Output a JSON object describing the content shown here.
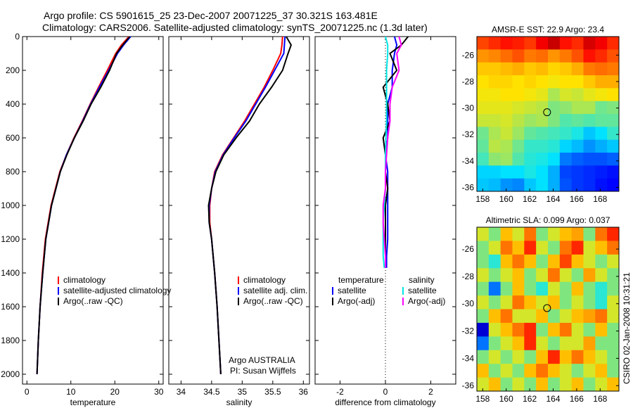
{
  "title": {
    "line1": "Argo profile: CS 5901615_25 23-Dec-2007 20071225_37 30.321S 163.481E",
    "line2": "Climatology: CARS2006. Satellite-adjusted climatology: synTS_20071225.nc (1.3d later)"
  },
  "side_label": "CSIRO 02-Jan-2008 10:31:21",
  "colors": {
    "climatology": "#ff0000",
    "satellite": "#0000ff",
    "argo": "#000000",
    "sal_satellite": "#00e5e5",
    "sal_argo": "#ff00ff"
  },
  "chart_data": [
    {
      "type": "line",
      "xlabel": "temperature",
      "ylabel": "",
      "xlim": [
        -1,
        31
      ],
      "ylim": [
        2000,
        0
      ],
      "xticks": [
        "0",
        "10",
        "20",
        "30"
      ],
      "yticks": [
        "0",
        "200",
        "400",
        "600",
        "800",
        "1000",
        "1200",
        "1400",
        "1600",
        "1800",
        "2000"
      ],
      "depth": [
        0,
        50,
        100,
        200,
        300,
        400,
        500,
        600,
        700,
        800,
        1000,
        1200,
        1400,
        1600,
        1800,
        2000
      ],
      "series": [
        {
          "name": "climatology",
          "values": [
            23.2,
            21.5,
            20.2,
            18.3,
            16.3,
            14.4,
            12.6,
            10.7,
            9.0,
            7.5,
            5.5,
            4.2,
            3.5,
            3.0,
            2.6,
            2.3
          ]
        },
        {
          "name": "satellite-adjusted climatology",
          "values": [
            23.6,
            22.0,
            20.6,
            18.6,
            16.5,
            14.5,
            12.7,
            10.8,
            9.0,
            7.6,
            5.6,
            4.3,
            3.6,
            3.0,
            2.6,
            2.3
          ]
        },
        {
          "name": "Argo(..raw -QC)",
          "values": [
            23.4,
            21.8,
            20.4,
            18.8,
            16.8,
            14.6,
            12.8,
            10.8,
            9.1,
            7.6,
            5.6,
            4.3,
            3.6,
            3.0,
            2.6,
            2.3
          ]
        }
      ],
      "legend": [
        "climatology",
        "satellite-adjusted climatology",
        "Argo(..raw -QC)"
      ]
    },
    {
      "type": "line",
      "xlabel": "salinity",
      "xlim": [
        33.8,
        36.1
      ],
      "ylim": [
        2000,
        0
      ],
      "xticks": [
        "34",
        "34.5",
        "35",
        "35.5",
        "36"
      ],
      "depth": [
        0,
        50,
        100,
        200,
        300,
        400,
        500,
        600,
        700,
        800,
        900,
        1000,
        1100,
        1200,
        1400,
        1600,
        1800,
        2000
      ],
      "series": [
        {
          "name": "climatology",
          "values": [
            35.66,
            35.65,
            35.63,
            35.5,
            35.36,
            35.2,
            35.04,
            34.86,
            34.68,
            34.55,
            34.5,
            34.47,
            34.47,
            34.5,
            34.55,
            34.59,
            34.62,
            34.65
          ]
        },
        {
          "name": "satellite adj. clim.",
          "values": [
            35.7,
            35.69,
            35.68,
            35.53,
            35.38,
            35.22,
            35.06,
            34.87,
            34.69,
            34.56,
            34.5,
            34.46,
            34.46,
            34.5,
            34.55,
            34.59,
            34.62,
            34.65
          ]
        },
        {
          "name": "Argo(..raw -QC)",
          "values": [
            35.72,
            35.8,
            35.75,
            35.66,
            35.48,
            35.28,
            35.12,
            34.9,
            34.7,
            34.57,
            34.5,
            34.45,
            34.46,
            34.5,
            34.55,
            34.59,
            34.62,
            34.65
          ]
        }
      ],
      "legend": [
        "climatology",
        "satellite adj. clim.",
        "Argo(..raw -QC)"
      ],
      "annotation": [
        "Argo AUSTRALIA",
        "PI: Susan Wijffels"
      ]
    },
    {
      "type": "line",
      "xlabel": "difference from climatology",
      "xlim": [
        -3.1,
        3.1
      ],
      "ylim": [
        2000,
        0
      ],
      "xticks": [
        "-2",
        "0",
        "2"
      ],
      "depth": [
        0,
        50,
        100,
        200,
        300,
        400,
        500,
        600,
        700,
        800,
        900,
        1000,
        1100,
        1200,
        1300,
        1370
      ],
      "series": [
        {
          "name": "temperature satellite",
          "values": [
            0.4,
            0.5,
            0.4,
            0.3,
            0.3,
            0.1,
            0.1,
            0.1,
            0.0,
            0.1,
            0.1,
            0.1,
            0.1,
            0.1,
            0.05,
            0.05
          ]
        },
        {
          "name": "temperature Argo(-adj)",
          "values": [
            1.0,
            0.7,
            0.2,
            0.5,
            -0.1,
            0.1,
            0.2,
            -0.1,
            0.0,
            0.0,
            0.1,
            0.0,
            0.0,
            0.0,
            0.0,
            0.0
          ]
        },
        {
          "name": "salinity satellite",
          "values": [
            0.0,
            0.1,
            0.1,
            0.05,
            0.05,
            0.05,
            0.05,
            0.02,
            0.0,
            0.0,
            0.0,
            -0.05,
            -0.1,
            -0.1,
            -0.1,
            -0.05
          ]
        },
        {
          "name": "salinity Argo(-adj)",
          "values": [
            0.6,
            0.7,
            0.5,
            0.6,
            0.3,
            0.2,
            0.2,
            0.1,
            0.05,
            0.0,
            0.0,
            -0.1,
            -0.1,
            -0.05,
            0.0,
            0.0
          ]
        }
      ],
      "legend": {
        "temperature": "temperature",
        "salinity": "salinity",
        "items": [
          "satellite",
          "Argo(-adj)",
          "satellite",
          "Argo(-adj)"
        ]
      }
    },
    {
      "type": "heatmap",
      "title": "AMSR-E SST: 22.9 Argo: 23.4",
      "xticks": [
        "158",
        "160",
        "162",
        "164",
        "166",
        "168"
      ],
      "yticks": [
        "-26",
        "-28",
        "-30",
        "-32",
        "-34",
        "-36"
      ],
      "clim": [
        19,
        26
      ],
      "profile_lon": 163.48,
      "profile_lat": -30.32,
      "grid": [
        [
          24.6,
          24.8,
          25.0,
          24.9,
          24.7,
          25.2,
          25.5,
          25.0,
          24.8,
          25.4,
          25.2,
          24.8
        ],
        [
          24.0,
          24.1,
          24.3,
          24.5,
          24.2,
          24.3,
          24.0,
          24.2,
          24.5,
          25.0,
          24.8,
          24.5
        ],
        [
          23.6,
          23.6,
          23.7,
          23.8,
          23.6,
          23.7,
          23.5,
          23.6,
          23.8,
          24.2,
          24.3,
          24.2
        ],
        [
          23.4,
          23.5,
          23.5,
          23.4,
          23.5,
          23.4,
          23.3,
          23.4,
          23.4,
          23.6,
          23.8,
          23.8
        ],
        [
          23.3,
          23.3,
          23.4,
          23.4,
          23.3,
          23.2,
          22.8,
          23.1,
          23.0,
          23.2,
          23.3,
          23.4
        ],
        [
          23.2,
          23.2,
          23.2,
          23.1,
          23.0,
          22.9,
          22.5,
          22.6,
          22.8,
          22.8,
          22.4,
          22.5
        ],
        [
          23.0,
          23.0,
          23.1,
          22.9,
          22.7,
          22.8,
          22.5,
          22.2,
          22.3,
          22.2,
          22.3,
          22.3
        ],
        [
          22.4,
          22.8,
          23.0,
          22.7,
          22.3,
          22.2,
          22.1,
          22.0,
          21.8,
          21.4,
          21.6,
          22.0
        ],
        [
          22.3,
          22.9,
          22.8,
          22.4,
          22.0,
          22.0,
          21.9,
          21.5,
          21.3,
          21.0,
          21.2,
          21.4
        ],
        [
          22.1,
          22.6,
          22.7,
          22.2,
          21.9,
          21.8,
          21.6,
          20.8,
          20.6,
          20.5,
          20.5,
          20.6
        ],
        [
          21.5,
          21.5,
          21.6,
          21.6,
          21.8,
          21.6,
          21.2,
          20.4,
          20.3,
          20.2,
          20.1,
          20.0
        ],
        [
          21.4,
          21.3,
          21.0,
          20.9,
          21.4,
          21.6,
          21.2,
          20.5,
          20.3,
          20.2,
          20.0,
          19.9
        ]
      ]
    },
    {
      "type": "heatmap",
      "title": "Altimetric SLA: 0.099 Argo: 0.037",
      "xticks": [
        "158",
        "160",
        "162",
        "164",
        "166",
        "168"
      ],
      "yticks": [
        "-26",
        "-28",
        "-30",
        "-32",
        "-34",
        "-36"
      ],
      "clim": [
        -0.3,
        0.3
      ],
      "profile_lon": 163.48,
      "profile_lat": -30.32,
      "grid": [
        [
          0.05,
          0.0,
          0.1,
          0.05,
          0.15,
          0.0,
          0.05,
          0.1,
          0.12,
          0.0,
          0.15,
          0.2
        ],
        [
          0.0,
          0.05,
          0.15,
          0.1,
          0.2,
          0.05,
          0.0,
          0.15,
          0.2,
          0.05,
          0.1,
          0.15
        ],
        [
          0.0,
          -0.05,
          0.1,
          0.15,
          0.1,
          0.0,
          0.1,
          0.18,
          0.1,
          0.05,
          0.0,
          0.05
        ],
        [
          0.05,
          0.0,
          0.05,
          0.1,
          0.0,
          0.05,
          0.15,
          0.05,
          0.0,
          0.12,
          0.05,
          0.0
        ],
        [
          0.0,
          -0.15,
          0.0,
          0.1,
          0.0,
          -0.05,
          0.05,
          0.0,
          0.1,
          0.0,
          -0.05,
          0.0
        ],
        [
          0.05,
          0.0,
          0.05,
          0.15,
          0.1,
          0.05,
          0.1,
          0.0,
          0.05,
          0.0,
          -0.05,
          0.05
        ],
        [
          0.0,
          0.1,
          0.15,
          0.05,
          0.05,
          0.1,
          0.0,
          0.05,
          0.1,
          0.12,
          0.15,
          0.05
        ],
        [
          -0.25,
          0.05,
          0.1,
          0.15,
          0.2,
          0.0,
          0.1,
          0.15,
          0.05,
          0.0,
          0.1,
          0.0
        ],
        [
          -0.15,
          0.0,
          0.05,
          0.1,
          0.2,
          0.05,
          0.0,
          0.05,
          0.05,
          0.12,
          0.0,
          0.0
        ],
        [
          0.0,
          0.05,
          0.0,
          0.05,
          0.0,
          0.1,
          0.2,
          0.1,
          0.15,
          0.1,
          0.05,
          0.0
        ],
        [
          0.1,
          0.0,
          0.05,
          0.0,
          0.1,
          0.15,
          0.1,
          0.05,
          0.0,
          0.05,
          0.1,
          0.0
        ],
        [
          0.05,
          0.1,
          0.0,
          0.05,
          0.0,
          0.1,
          0.0,
          0.05,
          0.1,
          0.0,
          0.05,
          0.1
        ]
      ]
    }
  ]
}
